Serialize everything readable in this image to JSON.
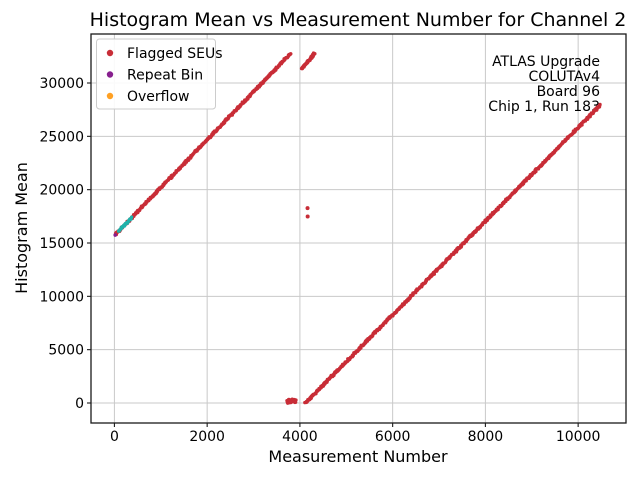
{
  "chart_data": {
    "type": "scatter",
    "title": "Histogram Mean vs Measurement Number for Channel 2",
    "xlabel": "Measurement Number",
    "ylabel": "Histogram Mean",
    "xlim": [
      -505,
      11032
    ],
    "ylim": [
      -1875,
      34594
    ],
    "xticks": [
      0,
      2000,
      4000,
      6000,
      8000,
      10000
    ],
    "yticks": [
      0,
      5000,
      10000,
      15000,
      20000,
      25000,
      30000
    ],
    "grid": true,
    "grid_color": "#c9c9c9",
    "legend": {
      "position": "upper-left",
      "entries": [
        {
          "label": "Flagged SEUs",
          "color": "#c82d37"
        },
        {
          "label": "Repeat Bin",
          "color": "#871f8e"
        },
        {
          "label": "Overflow",
          "color": "#ffa023"
        }
      ]
    },
    "annotation": {
      "position": "upper-right",
      "lines": [
        "ATLAS Upgrade",
        "COLUTAv4",
        "Board 96",
        "Chip 1, Run 183"
      ]
    },
    "series": [
      {
        "name": "flagged-seu-ramp-1",
        "kind": "ramp",
        "color": "#c82d37",
        "x0": 20,
        "y0": 15780,
        "x1": 3800,
        "y1": 32767,
        "n": 420,
        "r": 1.7
      },
      {
        "name": "unflagged-teal-segment",
        "kind": "ramp",
        "color": "#20b2aa",
        "x0": 80,
        "y0": 16050,
        "x1": 380,
        "y1": 17400,
        "n": 36,
        "r": 1.6
      },
      {
        "name": "repeat-bin-point",
        "kind": "points",
        "color": "#871f8e",
        "points": [
          [
            15,
            15760
          ]
        ],
        "r": 1.8
      },
      {
        "name": "adc-wrap-cluster",
        "kind": "cluster",
        "color": "#c82d37",
        "x0": 3720,
        "y0": 0,
        "x1": 3910,
        "y1": 330,
        "n": 50,
        "r": 1.7
      },
      {
        "name": "top-recovery-segment",
        "kind": "ramp",
        "color": "#c82d37",
        "x0": 4050,
        "y0": 31350,
        "x1": 4310,
        "y1": 32767,
        "n": 48,
        "r": 1.7
      },
      {
        "name": "flagged-seu-ramp-2",
        "kind": "ramp",
        "color": "#c82d37",
        "x0": 4120,
        "y0": 0,
        "x1": 10480,
        "y1": 27940,
        "n": 680,
        "r": 1.7
      },
      {
        "name": "seu-outlier-points",
        "kind": "points",
        "color": "#c82d37",
        "points": [
          [
            4180,
            18300
          ],
          [
            4180,
            17500
          ]
        ],
        "r": 2.0
      }
    ]
  }
}
